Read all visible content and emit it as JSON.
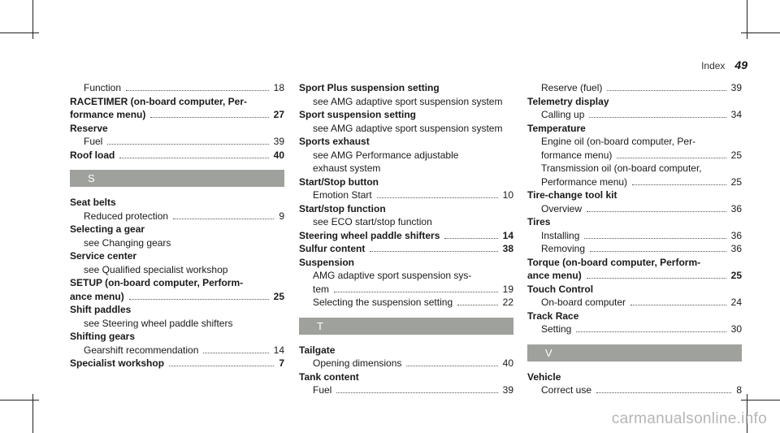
{
  "header": {
    "section": "Index",
    "page": "49"
  },
  "watermark": "carmanualsonline.info",
  "columns": [
    [
      {
        "lines": [
          {
            "text": "Function",
            "page": "18",
            "sub": true
          }
        ]
      },
      {
        "lines": [
          {
            "text": "RACETIMER (on-board computer, Per-",
            "bold": true
          },
          {
            "text": "formance menu)",
            "page": "27",
            "bold": true
          }
        ]
      },
      {
        "lines": [
          {
            "text": "Reserve",
            "bold": true
          },
          {
            "text": "Fuel",
            "page": "39",
            "sub": true
          }
        ]
      },
      {
        "lines": [
          {
            "text": "Roof load",
            "page": "40",
            "bold": true
          }
        ]
      },
      {
        "letter": "S"
      },
      {
        "lines": [
          {
            "text": "Seat belts",
            "bold": true
          },
          {
            "text": "Reduced protection",
            "page": "9",
            "sub": true
          }
        ]
      },
      {
        "lines": [
          {
            "text": "Selecting a gear",
            "bold": true
          },
          {
            "text": "see Changing gears",
            "sub": true
          }
        ]
      },
      {
        "lines": [
          {
            "text": "Service center",
            "bold": true
          },
          {
            "text": "see Qualified specialist workshop",
            "sub": true
          }
        ]
      },
      {
        "lines": [
          {
            "text": "SETUP (on-board computer, Perform-",
            "bold": true
          },
          {
            "text": "ance menu)",
            "page": "25",
            "bold": true
          }
        ]
      },
      {
        "lines": [
          {
            "text": "Shift paddles",
            "bold": true
          },
          {
            "text": "see Steering wheel paddle shifters",
            "sub": true
          }
        ]
      },
      {
        "lines": [
          {
            "text": "Shifting gears",
            "bold": true
          },
          {
            "text": "Gearshift recommendation",
            "page": "14",
            "sub": true
          }
        ]
      },
      {
        "lines": [
          {
            "text": "Specialist workshop",
            "page": "7",
            "bold": true
          }
        ]
      }
    ],
    [
      {
        "lines": [
          {
            "text": "Sport Plus suspension setting",
            "bold": true
          },
          {
            "text": "see AMG adaptive sport suspension system",
            "sub": true
          }
        ]
      },
      {
        "lines": [
          {
            "text": "Sport suspension setting",
            "bold": true
          },
          {
            "text": "see AMG adaptive sport suspension system",
            "sub": true
          }
        ]
      },
      {
        "lines": [
          {
            "text": "Sports exhaust",
            "bold": true
          },
          {
            "text": "see AMG Performance adjustable",
            "sub": true
          },
          {
            "text": "exhaust system",
            "sub": true
          }
        ]
      },
      {
        "lines": [
          {
            "text": "Start/Stop button",
            "bold": true
          },
          {
            "text": "Emotion Start",
            "page": "10",
            "sub": true
          }
        ]
      },
      {
        "lines": [
          {
            "text": "Start/stop function",
            "bold": true
          },
          {
            "text": "see ECO start/stop function",
            "sub": true
          }
        ]
      },
      {
        "lines": [
          {
            "text": "Steering wheel paddle shifters",
            "page": "14",
            "bold": true
          }
        ]
      },
      {
        "lines": [
          {
            "text": "Sulfur content",
            "page": "38",
            "bold": true
          }
        ]
      },
      {
        "lines": [
          {
            "text": "Suspension",
            "bold": true
          },
          {
            "text": "AMG adaptive sport suspension sys-",
            "sub": true
          },
          {
            "text": "tem",
            "page": "19",
            "sub": true
          },
          {
            "text": "Selecting the suspension setting",
            "page": "22",
            "sub": true
          }
        ]
      },
      {
        "letter": "T"
      },
      {
        "lines": [
          {
            "text": "Tailgate",
            "bold": true
          },
          {
            "text": "Opening dimensions",
            "page": "40",
            "sub": true
          }
        ]
      },
      {
        "lines": [
          {
            "text": "Tank content",
            "bold": true
          },
          {
            "text": "Fuel",
            "page": "39",
            "sub": true
          }
        ]
      }
    ],
    [
      {
        "lines": [
          {
            "text": "Reserve (fuel)",
            "page": "39",
            "sub": true
          }
        ]
      },
      {
        "lines": [
          {
            "text": "Telemetry display",
            "bold": true
          },
          {
            "text": "Calling up",
            "page": "34",
            "sub": true
          }
        ]
      },
      {
        "lines": [
          {
            "text": "Temperature",
            "bold": true
          },
          {
            "text": "Engine oil (on-board computer, Per-",
            "sub": true
          },
          {
            "text": "formance menu)",
            "page": "25",
            "sub": true
          },
          {
            "text": "Transmission oil (on-board computer,",
            "sub": true
          },
          {
            "text": "Performance menu)",
            "page": "25",
            "sub": true
          }
        ]
      },
      {
        "lines": [
          {
            "text": "Tire-change tool kit",
            "bold": true
          },
          {
            "text": "Overview",
            "page": "36",
            "sub": true
          }
        ]
      },
      {
        "lines": [
          {
            "text": "Tires",
            "bold": true
          },
          {
            "text": "Installing",
            "page": "36",
            "sub": true
          },
          {
            "text": "Removing",
            "page": "36",
            "sub": true
          }
        ]
      },
      {
        "lines": [
          {
            "text": "Torque (on-board computer, Perform-",
            "bold": true
          },
          {
            "text": "ance menu)",
            "page": "25",
            "bold": true
          }
        ]
      },
      {
        "lines": [
          {
            "text": "Touch Control",
            "bold": true
          },
          {
            "text": "On-board computer",
            "page": "24",
            "sub": true
          }
        ]
      },
      {
        "lines": [
          {
            "text": "Track Race",
            "bold": true
          },
          {
            "text": "Setting",
            "page": "30",
            "sub": true
          }
        ]
      },
      {
        "letter": "V"
      },
      {
        "lines": [
          {
            "text": "Vehicle",
            "bold": true
          },
          {
            "text": "Correct use",
            "page": "8",
            "sub": true
          }
        ]
      }
    ]
  ]
}
